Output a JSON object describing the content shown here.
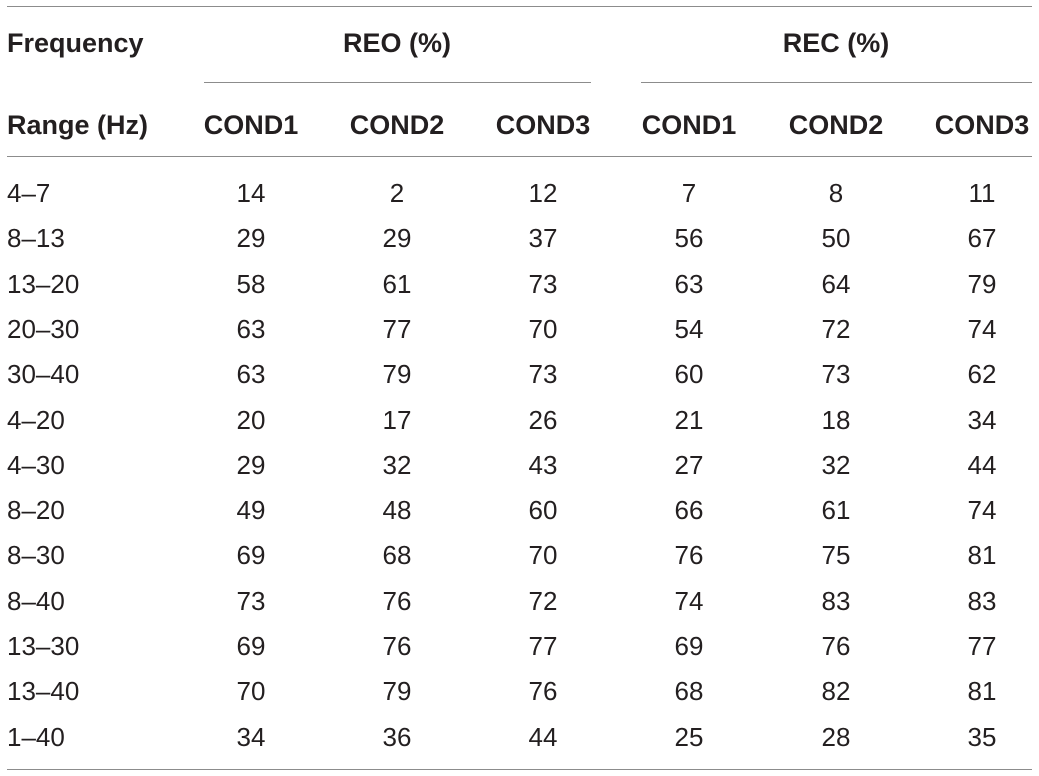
{
  "header": {
    "freq_line1": "Frequency",
    "freq_line2": "Range (Hz)",
    "groups": [
      "REO (%)",
      "REC (%)"
    ],
    "conditions": [
      "COND1",
      "COND2",
      "COND3",
      "COND1",
      "COND2",
      "COND3"
    ]
  },
  "rows": [
    {
      "range": "4–7",
      "values": [
        "14",
        "2",
        "12",
        "7",
        "8",
        "11"
      ]
    },
    {
      "range": "8–13",
      "values": [
        "29",
        "29",
        "37",
        "56",
        "50",
        "67"
      ]
    },
    {
      "range": "13–20",
      "values": [
        "58",
        "61",
        "73",
        "63",
        "64",
        "79"
      ]
    },
    {
      "range": "20–30",
      "values": [
        "63",
        "77",
        "70",
        "54",
        "72",
        "74"
      ]
    },
    {
      "range": "30–40",
      "values": [
        "63",
        "79",
        "73",
        "60",
        "73",
        "62"
      ]
    },
    {
      "range": "4–20",
      "values": [
        "20",
        "17",
        "26",
        "21",
        "18",
        "34"
      ]
    },
    {
      "range": "4–30",
      "values": [
        "29",
        "32",
        "43",
        "27",
        "32",
        "44"
      ]
    },
    {
      "range": "8–20",
      "values": [
        "49",
        "48",
        "60",
        "66",
        "61",
        "74"
      ]
    },
    {
      "range": "8–30",
      "values": [
        "69",
        "68",
        "70",
        "76",
        "75",
        "81"
      ]
    },
    {
      "range": "8–40",
      "values": [
        "73",
        "76",
        "72",
        "74",
        "83",
        "83"
      ]
    },
    {
      "range": "13–30",
      "values": [
        "69",
        "76",
        "77",
        "69",
        "76",
        "77"
      ]
    },
    {
      "range": "13–40",
      "values": [
        "70",
        "79",
        "76",
        "68",
        "82",
        "81"
      ]
    },
    {
      "range": "1–40",
      "values": [
        "34",
        "36",
        "44",
        "25",
        "28",
        "35"
      ]
    }
  ]
}
